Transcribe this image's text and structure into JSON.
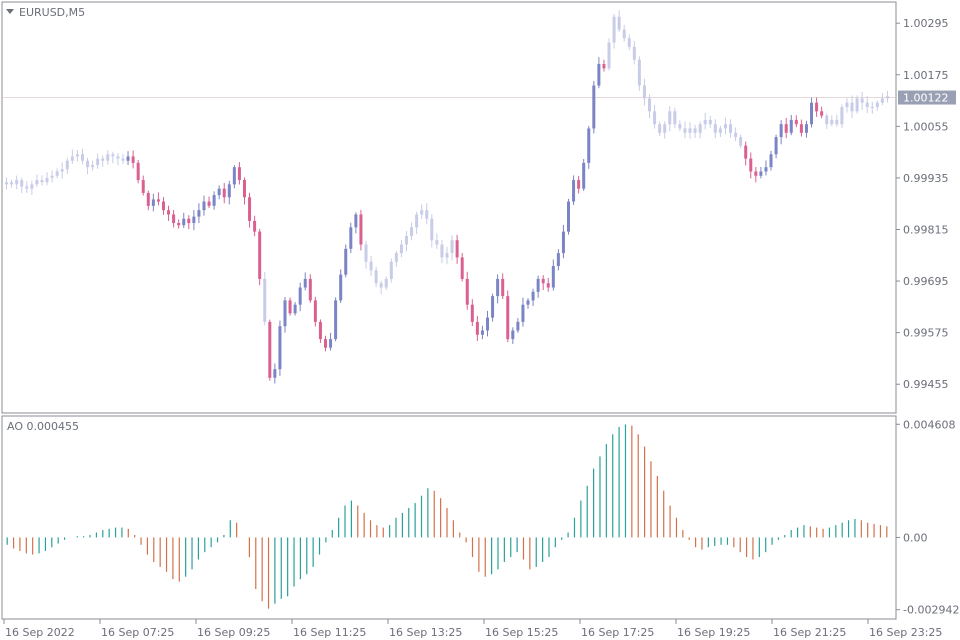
{
  "symbol_label": "EURUSD,M5",
  "indicator_label": "AO 0.000455",
  "colors": {
    "frame": "#8a8d96",
    "text": "#6b6f7a",
    "bull_candle": "#7b84c4",
    "bear_candle": "#d9608f",
    "faded_candle": "#c8cce8",
    "current_line": "#e8d8d8",
    "price_tag_bg": "#9aa0b4",
    "ao_up": "#2aa198",
    "ao_down": "#d2714a"
  },
  "current_price": "1.00122",
  "chart_data": [
    {
      "type": "candlestick",
      "price_axis_ticks": [
        "1.00295",
        "1.00175",
        "1.00055",
        "0.99935",
        "0.99815",
        "0.99695",
        "0.99575",
        "0.99455"
      ],
      "ylim": [
        0.99395,
        1.00335
      ],
      "x_tick_labels": [
        "16 Sep 2022",
        "16 Sep 07:25",
        "16 Sep 09:25",
        "16 Sep 11:25",
        "16 Sep 13:25",
        "16 Sep 15:25",
        "16 Sep 17:25",
        "16 Sep 19:25",
        "16 Sep 21:25",
        "16 Sep 23:25"
      ],
      "close_series": [
        0.99925,
        0.9992,
        0.9993,
        0.99915,
        0.9991,
        0.9992,
        0.9993,
        0.99925,
        0.99935,
        0.9994,
        0.9995,
        0.99955,
        0.99975,
        0.99985,
        0.9999,
        0.99975,
        0.9996,
        0.99965,
        0.9998,
        0.99975,
        0.9999,
        0.99985,
        0.9998,
        0.99975,
        0.99985,
        0.9997,
        0.9993,
        0.999,
        0.9987,
        0.99885,
        0.9988,
        0.9986,
        0.9985,
        0.9983,
        0.99825,
        0.9984,
        0.9983,
        0.99845,
        0.9986,
        0.9988,
        0.9987,
        0.99895,
        0.9991,
        0.9989,
        0.9992,
        0.9996,
        0.9993,
        0.9989,
        0.99835,
        0.9981,
        0.997,
        0.996,
        0.9947,
        0.9949,
        0.9959,
        0.9965,
        0.9962,
        0.9964,
        0.9968,
        0.997,
        0.9965,
        0.996,
        0.9956,
        0.9954,
        0.9956,
        0.9965,
        0.9971,
        0.9977,
        0.9982,
        0.9985,
        0.9978,
        0.9974,
        0.9972,
        0.9969,
        0.9968,
        0.997,
        0.9974,
        0.9976,
        0.9978,
        0.998,
        0.9982,
        0.9985,
        0.9986,
        0.9984,
        0.9979,
        0.9978,
        0.9975,
        0.9976,
        0.9979,
        0.9975,
        0.997,
        0.9964,
        0.996,
        0.9957,
        0.9958,
        0.9961,
        0.9966,
        0.997,
        0.9966,
        0.9956,
        0.9958,
        0.996,
        0.9964,
        0.9965,
        0.9967,
        0.997,
        0.9969,
        0.9968,
        0.9973,
        0.9976,
        0.9981,
        0.9988,
        0.9993,
        0.9991,
        0.9997,
        1.0005,
        1.0015,
        1.002,
        1.0019,
        1.0025,
        1.0031,
        1.0028,
        1.0026,
        1.0024,
        1.0021,
        1.0015,
        1.0012,
        1.0009,
        1.0006,
        1.0004,
        1.0006,
        1.0009,
        1.0006,
        1.0005,
        1.0004,
        1.0005,
        1.0004,
        1.0006,
        1.0007,
        1.0006,
        1.0004,
        1.0005,
        1.0006,
        1.0004,
        1.0003,
        1.0001,
        0.9998,
        0.9995,
        0.9994,
        0.9995,
        0.9996,
        0.9999,
        1.0003,
        1.0006,
        1.0004,
        1.0007,
        1.0006,
        1.0004,
        1.0006,
        1.0011,
        1.0009,
        1.0008,
        1.0006,
        1.0007,
        1.0006,
        1.001,
        1.0011,
        1.0009,
        1.0012,
        1.0011,
        1.001,
        1.001,
        1.0011,
        1.0012,
        1.00125
      ],
      "highlighted_ranges": [
        [
          24,
          50
        ],
        [
          52,
          70
        ],
        [
          89,
          118
        ],
        [
          146,
          161
        ]
      ]
    },
    {
      "type": "bar",
      "title": "AO",
      "value_axis_ticks": [
        "0.004608",
        "0.00",
        "-0.002942"
      ],
      "ylim": [
        -0.0032,
        0.0047
      ],
      "values": [
        -0.0003,
        -0.00045,
        -0.00055,
        -0.00065,
        -0.0007,
        -0.00065,
        -0.00055,
        -0.0004,
        -0.00025,
        -0.0001,
        0.0,
        5e-05,
        5e-05,
        0.0001,
        0.0002,
        0.0003,
        0.00035,
        0.0004,
        0.0004,
        0.00035,
        0.0001,
        -0.0003,
        -0.0007,
        -0.001,
        -0.0012,
        -0.0014,
        -0.0017,
        -0.0018,
        -0.0016,
        -0.0013,
        -0.0009,
        -0.0006,
        -0.0004,
        -0.0002,
        0.0001,
        0.0007,
        0.0006,
        0.0,
        -0.0008,
        -0.0021,
        -0.0026,
        -0.0029,
        -0.0027,
        -0.0025,
        -0.0024,
        -0.002,
        -0.0017,
        -0.0015,
        -0.0012,
        -0.0007,
        -0.0002,
        0.0003,
        0.0008,
        0.0013,
        0.0015,
        0.0013,
        0.001,
        0.0007,
        0.0005,
        0.0004,
        0.0005,
        0.0008,
        0.001,
        0.0012,
        0.0014,
        0.0017,
        0.002,
        0.0019,
        0.0016,
        0.0012,
        0.0007,
        0.0002,
        -0.0002,
        -0.0008,
        -0.0014,
        -0.0016,
        -0.0015,
        -0.0013,
        -0.001,
        -0.0008,
        -0.0006,
        -0.0009,
        -0.0013,
        -0.0012,
        -0.001,
        -0.0008,
        -0.0004,
        -0.0001,
        0.0002,
        0.0008,
        0.0015,
        0.0021,
        0.0028,
        0.0033,
        0.0038,
        0.0042,
        0.0045,
        0.0046,
        0.00455,
        0.0042,
        0.0037,
        0.0031,
        0.0025,
        0.0019,
        0.0013,
        0.0008,
        0.0003,
        -0.0001,
        -0.0004,
        -0.0005,
        -0.0004,
        -0.00035,
        -0.0003,
        -0.0003,
        -0.0004,
        -0.0006,
        -0.0008,
        -0.0009,
        -0.0008,
        -0.0006,
        -0.0003,
        -0.0001,
        0.0001,
        0.0003,
        0.0004,
        0.0005,
        0.00045,
        0.0004,
        0.00035,
        0.0004,
        0.0005,
        0.0006,
        0.0007,
        0.00075,
        0.0007,
        0.0006,
        0.00055,
        0.0005,
        0.00045
      ]
    }
  ]
}
